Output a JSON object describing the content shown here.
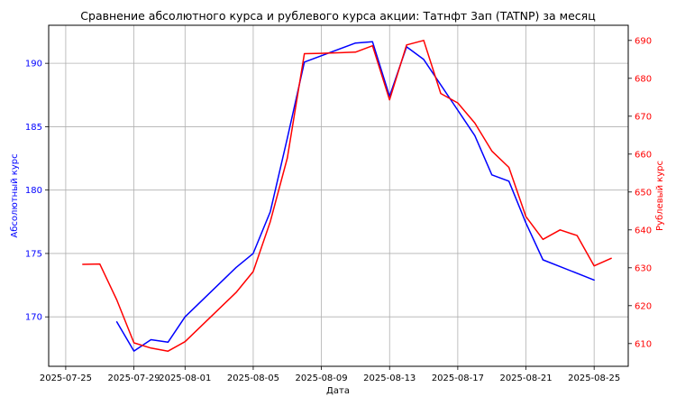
{
  "chart_data": {
    "type": "line",
    "title": "Сравнение абсолютного курса и рублевого курса акции: Татнфт 3ап (TATNP) за месяц",
    "xlabel": "Дата",
    "ylabel_left": "Абсолютный курс",
    "ylabel_right": "Рублевый курс",
    "x_ticks": [
      "2025-07-25",
      "2025-07-29",
      "2025-08-01",
      "2025-08-05",
      "2025-08-09",
      "2025-08-13",
      "2025-08-17",
      "2025-08-21",
      "2025-08-25"
    ],
    "xlim": [
      "2025-07-24",
      "2025-08-27"
    ],
    "ylim_left": [
      166.1,
      193.0
    ],
    "ylim_right": [
      604.0,
      694.0
    ],
    "y_ticks_left": [
      170,
      175,
      180,
      185,
      190
    ],
    "y_ticks_right": [
      610,
      620,
      630,
      640,
      650,
      660,
      670,
      680,
      690
    ],
    "grid": true,
    "series": [
      {
        "axis": "left",
        "color": "#0000ff",
        "points": [
          [
            "2025-07-28",
            169.6
          ],
          [
            "2025-07-29",
            167.3
          ],
          [
            "2025-07-30",
            168.2
          ],
          [
            "2025-07-31",
            168.0
          ],
          [
            "2025-08-01",
            170.0
          ],
          [
            "2025-08-04",
            173.9
          ],
          [
            "2025-08-05",
            175.0
          ],
          [
            "2025-08-06",
            178.3
          ],
          [
            "2025-08-07",
            184.1
          ],
          [
            "2025-08-08",
            190.1
          ],
          [
            "2025-08-11",
            191.6
          ],
          [
            "2025-08-12",
            191.7
          ],
          [
            "2025-08-13",
            187.4
          ],
          [
            "2025-08-14",
            191.3
          ],
          [
            "2025-08-15",
            190.3
          ],
          [
            "2025-08-18",
            184.3
          ],
          [
            "2025-08-19",
            181.2
          ],
          [
            "2025-08-20",
            180.7
          ],
          [
            "2025-08-21",
            177.4
          ],
          [
            "2025-08-22",
            174.5
          ],
          [
            "2025-08-25",
            172.9
          ]
        ]
      },
      {
        "axis": "right",
        "color": "#ff0000",
        "points": [
          [
            "2025-07-26",
            630.9
          ],
          [
            "2025-07-27",
            631.0
          ],
          [
            "2025-07-28",
            621.5
          ],
          [
            "2025-07-29",
            610.2
          ],
          [
            "2025-07-30",
            608.8
          ],
          [
            "2025-07-31",
            608.0
          ],
          [
            "2025-08-01",
            610.5
          ],
          [
            "2025-08-04",
            623.5
          ],
          [
            "2025-08-05",
            629.0
          ],
          [
            "2025-08-06",
            642.2
          ],
          [
            "2025-08-07",
            659.0
          ],
          [
            "2025-08-08",
            686.5
          ],
          [
            "2025-08-09",
            686.6
          ],
          [
            "2025-08-11",
            686.9
          ],
          [
            "2025-08-12",
            688.6
          ],
          [
            "2025-08-13",
            674.3
          ],
          [
            "2025-08-14",
            688.8
          ],
          [
            "2025-08-15",
            690.0
          ],
          [
            "2025-08-16",
            676.0
          ],
          [
            "2025-08-17",
            673.5
          ],
          [
            "2025-08-18",
            668.2
          ],
          [
            "2025-08-19",
            660.8
          ],
          [
            "2025-08-20",
            656.5
          ],
          [
            "2025-08-21",
            643.5
          ],
          [
            "2025-08-22",
            637.5
          ],
          [
            "2025-08-23",
            640.0
          ],
          [
            "2025-08-24",
            638.5
          ],
          [
            "2025-08-25",
            630.5
          ],
          [
            "2025-08-26",
            632.5
          ]
        ]
      }
    ]
  }
}
